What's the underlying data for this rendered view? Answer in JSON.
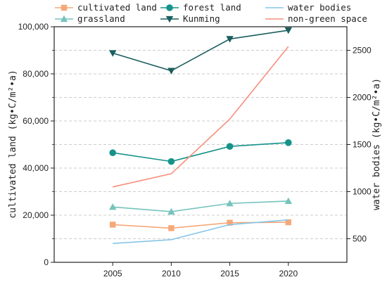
{
  "chart_data": {
    "type": "line",
    "x": [
      2005,
      2010,
      2015,
      2020
    ],
    "xlim": [
      2000,
      2025
    ],
    "left_axis": {
      "label": "cultivated land (kg•C/m²•a)",
      "ylim": [
        0,
        100000
      ],
      "ticks": [
        0,
        20000,
        40000,
        60000,
        80000,
        100000
      ],
      "tick_labels": [
        "0",
        "20,000",
        "40,000",
        "60,000",
        "80,000",
        "100,000"
      ]
    },
    "right_axis": {
      "label": "water bodies (kg•C/m²•a)",
      "ylim": [
        250,
        2750
      ],
      "ticks": [
        500,
        1000,
        1500,
        2000,
        2500
      ],
      "tick_labels": [
        "500",
        "1000",
        "1500",
        "2000",
        "2500"
      ]
    },
    "grid": "horizontal dashed",
    "legend_position": "top",
    "series": [
      {
        "name": "cultivated land",
        "axis": "left",
        "values": [
          16000,
          14500,
          16800,
          17000
        ],
        "color": "#f5a878",
        "marker": "square"
      },
      {
        "name": "forest land",
        "axis": "left",
        "values": [
          46500,
          42800,
          49200,
          50800
        ],
        "color": "#15938a",
        "marker": "circle"
      },
      {
        "name": "water bodies",
        "axis": "right",
        "values": [
          450,
          490,
          650,
          700
        ],
        "color": "#86c5e8",
        "marker": "none"
      },
      {
        "name": "grassland",
        "axis": "left",
        "values": [
          23500,
          21500,
          25000,
          26000
        ],
        "color": "#74c4bb",
        "marker": "triangle-up"
      },
      {
        "name": "Kunming",
        "axis": "left",
        "values": [
          88800,
          81300,
          94800,
          98500
        ],
        "color": "#1b5e5e",
        "marker": "triangle-down"
      },
      {
        "name": "non-green space",
        "axis": "right",
        "values": [
          1050,
          1190,
          1770,
          2540
        ],
        "color": "#f78f7c",
        "marker": "none"
      }
    ]
  }
}
